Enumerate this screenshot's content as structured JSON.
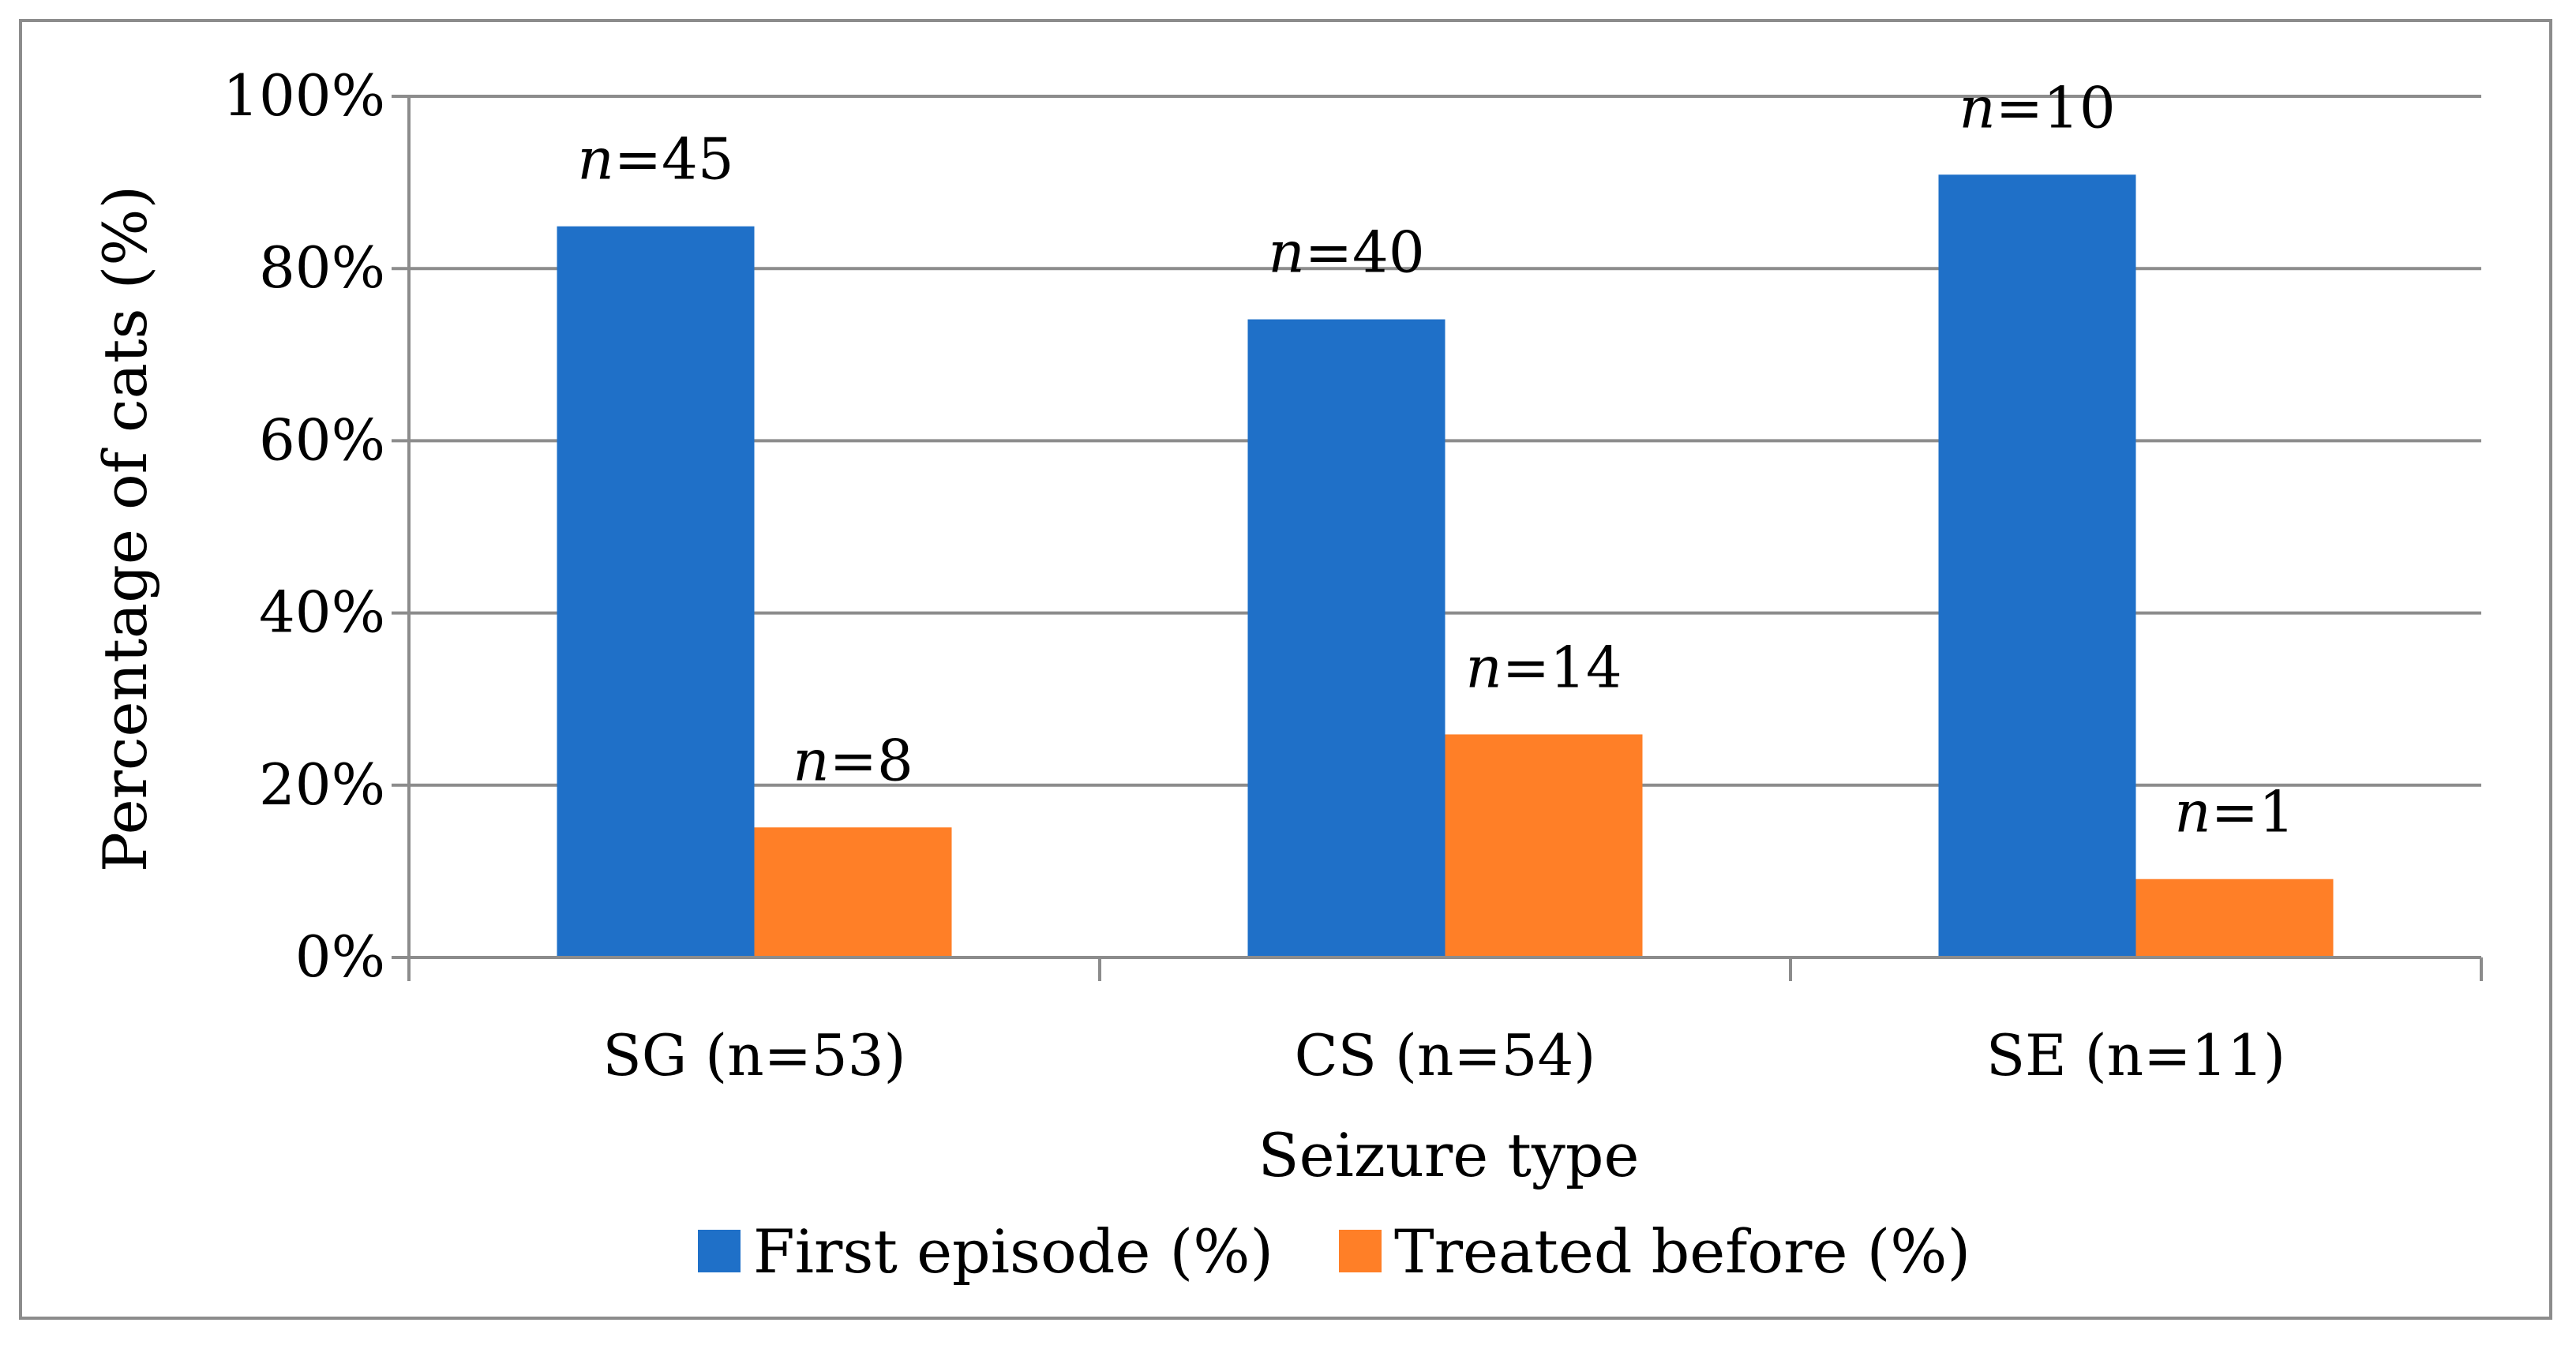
{
  "chart_data": {
    "type": "bar",
    "title": "",
    "xlabel": "Seizure type",
    "ylabel": "Percentage of cats (%)",
    "ylim": [
      0,
      100
    ],
    "y_ticks": [
      "0%",
      "20%",
      "40%",
      "60%",
      "80%",
      "100%"
    ],
    "y_tick_values": [
      0,
      20,
      40,
      60,
      80,
      100
    ],
    "grid": true,
    "legend_position": "bottom",
    "categories": [
      "SG (n=53)",
      "CS (n=54)",
      "SE (n=11)"
    ],
    "series": [
      {
        "name": "First episode (%)",
        "color": "#1f70c8",
        "values": [
          84.9,
          74.1,
          90.9
        ],
        "labels": [
          "45",
          "40",
          "10"
        ]
      },
      {
        "name": "Treated before (%)",
        "color": "#ff7f27",
        "values": [
          15.1,
          25.9,
          9.1
        ],
        "labels": [
          "8",
          "14",
          "1"
        ]
      }
    ],
    "data_label_prefix": "n",
    "data_label_sep": "="
  }
}
